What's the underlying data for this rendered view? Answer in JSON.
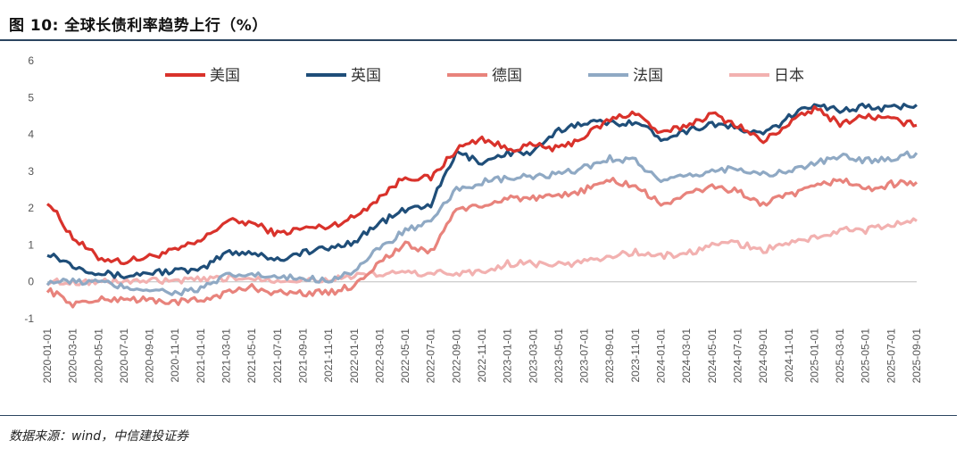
{
  "figure": {
    "title": "图 10: 全球长债利率趋势上行（%）",
    "source": "数据来源：wind，中信建投证券"
  },
  "chart_data": {
    "type": "line",
    "title": "全球长债利率趋势上行（%）",
    "xlabel": "",
    "ylabel": "",
    "ylim": [
      -1,
      6
    ],
    "yticks": [
      -1,
      0,
      1,
      2,
      3,
      4,
      5,
      6
    ],
    "grid": false,
    "legend_position": "top",
    "x": [
      "2020-01",
      "2020-03",
      "2020-05",
      "2020-07",
      "2020-09",
      "2020-11",
      "2021-01",
      "2021-03",
      "2021-05",
      "2021-07",
      "2021-09",
      "2021-11",
      "2022-01",
      "2022-03",
      "2022-05",
      "2022-07",
      "2022-09",
      "2022-11",
      "2023-01",
      "2023-03",
      "2023-05",
      "2023-07",
      "2023-09",
      "2023-11",
      "2024-01",
      "2024-03",
      "2024-05",
      "2024-07",
      "2024-09",
      "2024-11",
      "2025-01",
      "2025-03",
      "2025-05",
      "2025-07",
      "2025-09"
    ],
    "x_tick_labels": [
      "2020-01-01",
      "2020-03-01",
      "2020-05-01",
      "2020-07-01",
      "2020-09-01",
      "2020-11-01",
      "2021-01-01",
      "2021-03-01",
      "2021-05-01",
      "2021-07-01",
      "2021-09-01",
      "2021-11-01",
      "2022-01-01",
      "2022-03-01",
      "2022-05-01",
      "2022-07-01",
      "2022-09-01",
      "2022-11-01",
      "2023-01-01",
      "2023-03-01",
      "2023-05-01",
      "2023-07-01",
      "2023-09-01",
      "2023-11-01",
      "2024-01-01",
      "2024-03-01",
      "2024-05-01",
      "2024-07-01",
      "2024-09-01",
      "2024-11-01",
      "2025-01-01",
      "2025-03-01",
      "2025-05-01",
      "2025-07-01",
      "2025-09-01"
    ],
    "series": [
      {
        "name": "美国",
        "color": "#d9322b",
        "values": [
          2.2,
          1.2,
          0.65,
          0.55,
          0.68,
          0.85,
          1.1,
          1.65,
          1.6,
          1.3,
          1.45,
          1.5,
          1.75,
          2.3,
          2.85,
          2.8,
          3.6,
          3.9,
          3.6,
          3.7,
          3.6,
          3.95,
          4.4,
          4.6,
          4.0,
          4.25,
          4.55,
          4.25,
          3.8,
          4.3,
          4.7,
          4.3,
          4.5,
          4.4,
          4.25
        ]
      },
      {
        "name": "英国",
        "color": "#1f4e79",
        "values": [
          0.8,
          0.45,
          0.25,
          0.15,
          0.25,
          0.3,
          0.3,
          0.8,
          0.8,
          0.6,
          0.8,
          0.9,
          1.1,
          1.6,
          1.95,
          2.1,
          3.5,
          3.25,
          3.5,
          3.5,
          4.1,
          4.35,
          4.3,
          4.35,
          3.9,
          4.1,
          4.3,
          4.15,
          4.0,
          4.45,
          4.85,
          4.65,
          4.75,
          4.7,
          4.8
        ]
      },
      {
        "name": "德国",
        "color": "#e8837c",
        "values": [
          -0.2,
          -0.6,
          -0.5,
          -0.45,
          -0.5,
          -0.55,
          -0.5,
          -0.3,
          -0.15,
          -0.3,
          -0.3,
          -0.3,
          -0.1,
          0.55,
          1.0,
          0.8,
          2.0,
          2.0,
          2.3,
          2.25,
          2.3,
          2.5,
          2.75,
          2.6,
          2.1,
          2.35,
          2.6,
          2.45,
          2.1,
          2.35,
          2.55,
          2.8,
          2.5,
          2.65,
          2.7
        ]
      },
      {
        "name": "法国",
        "color": "#8fa9c4",
        "values": [
          0.0,
          0.0,
          0.0,
          -0.15,
          -0.2,
          -0.3,
          -0.2,
          0.15,
          0.2,
          0.1,
          0.1,
          0.05,
          0.3,
          0.9,
          1.4,
          1.6,
          2.5,
          2.7,
          2.8,
          2.85,
          2.9,
          3.1,
          3.35,
          3.3,
          2.7,
          2.85,
          3.0,
          3.1,
          2.9,
          3.0,
          3.2,
          3.4,
          3.3,
          3.35,
          3.5
        ]
      },
      {
        "name": "日本",
        "color": "#f2b1b0",
        "values": [
          0.0,
          0.0,
          0.0,
          0.02,
          0.02,
          0.02,
          0.05,
          0.1,
          0.1,
          0.05,
          0.05,
          0.07,
          0.15,
          0.2,
          0.25,
          0.22,
          0.25,
          0.25,
          0.5,
          0.5,
          0.45,
          0.55,
          0.7,
          0.8,
          0.7,
          0.75,
          1.0,
          1.05,
          0.85,
          1.05,
          1.2,
          1.4,
          1.4,
          1.55,
          1.65
        ]
      }
    ]
  }
}
